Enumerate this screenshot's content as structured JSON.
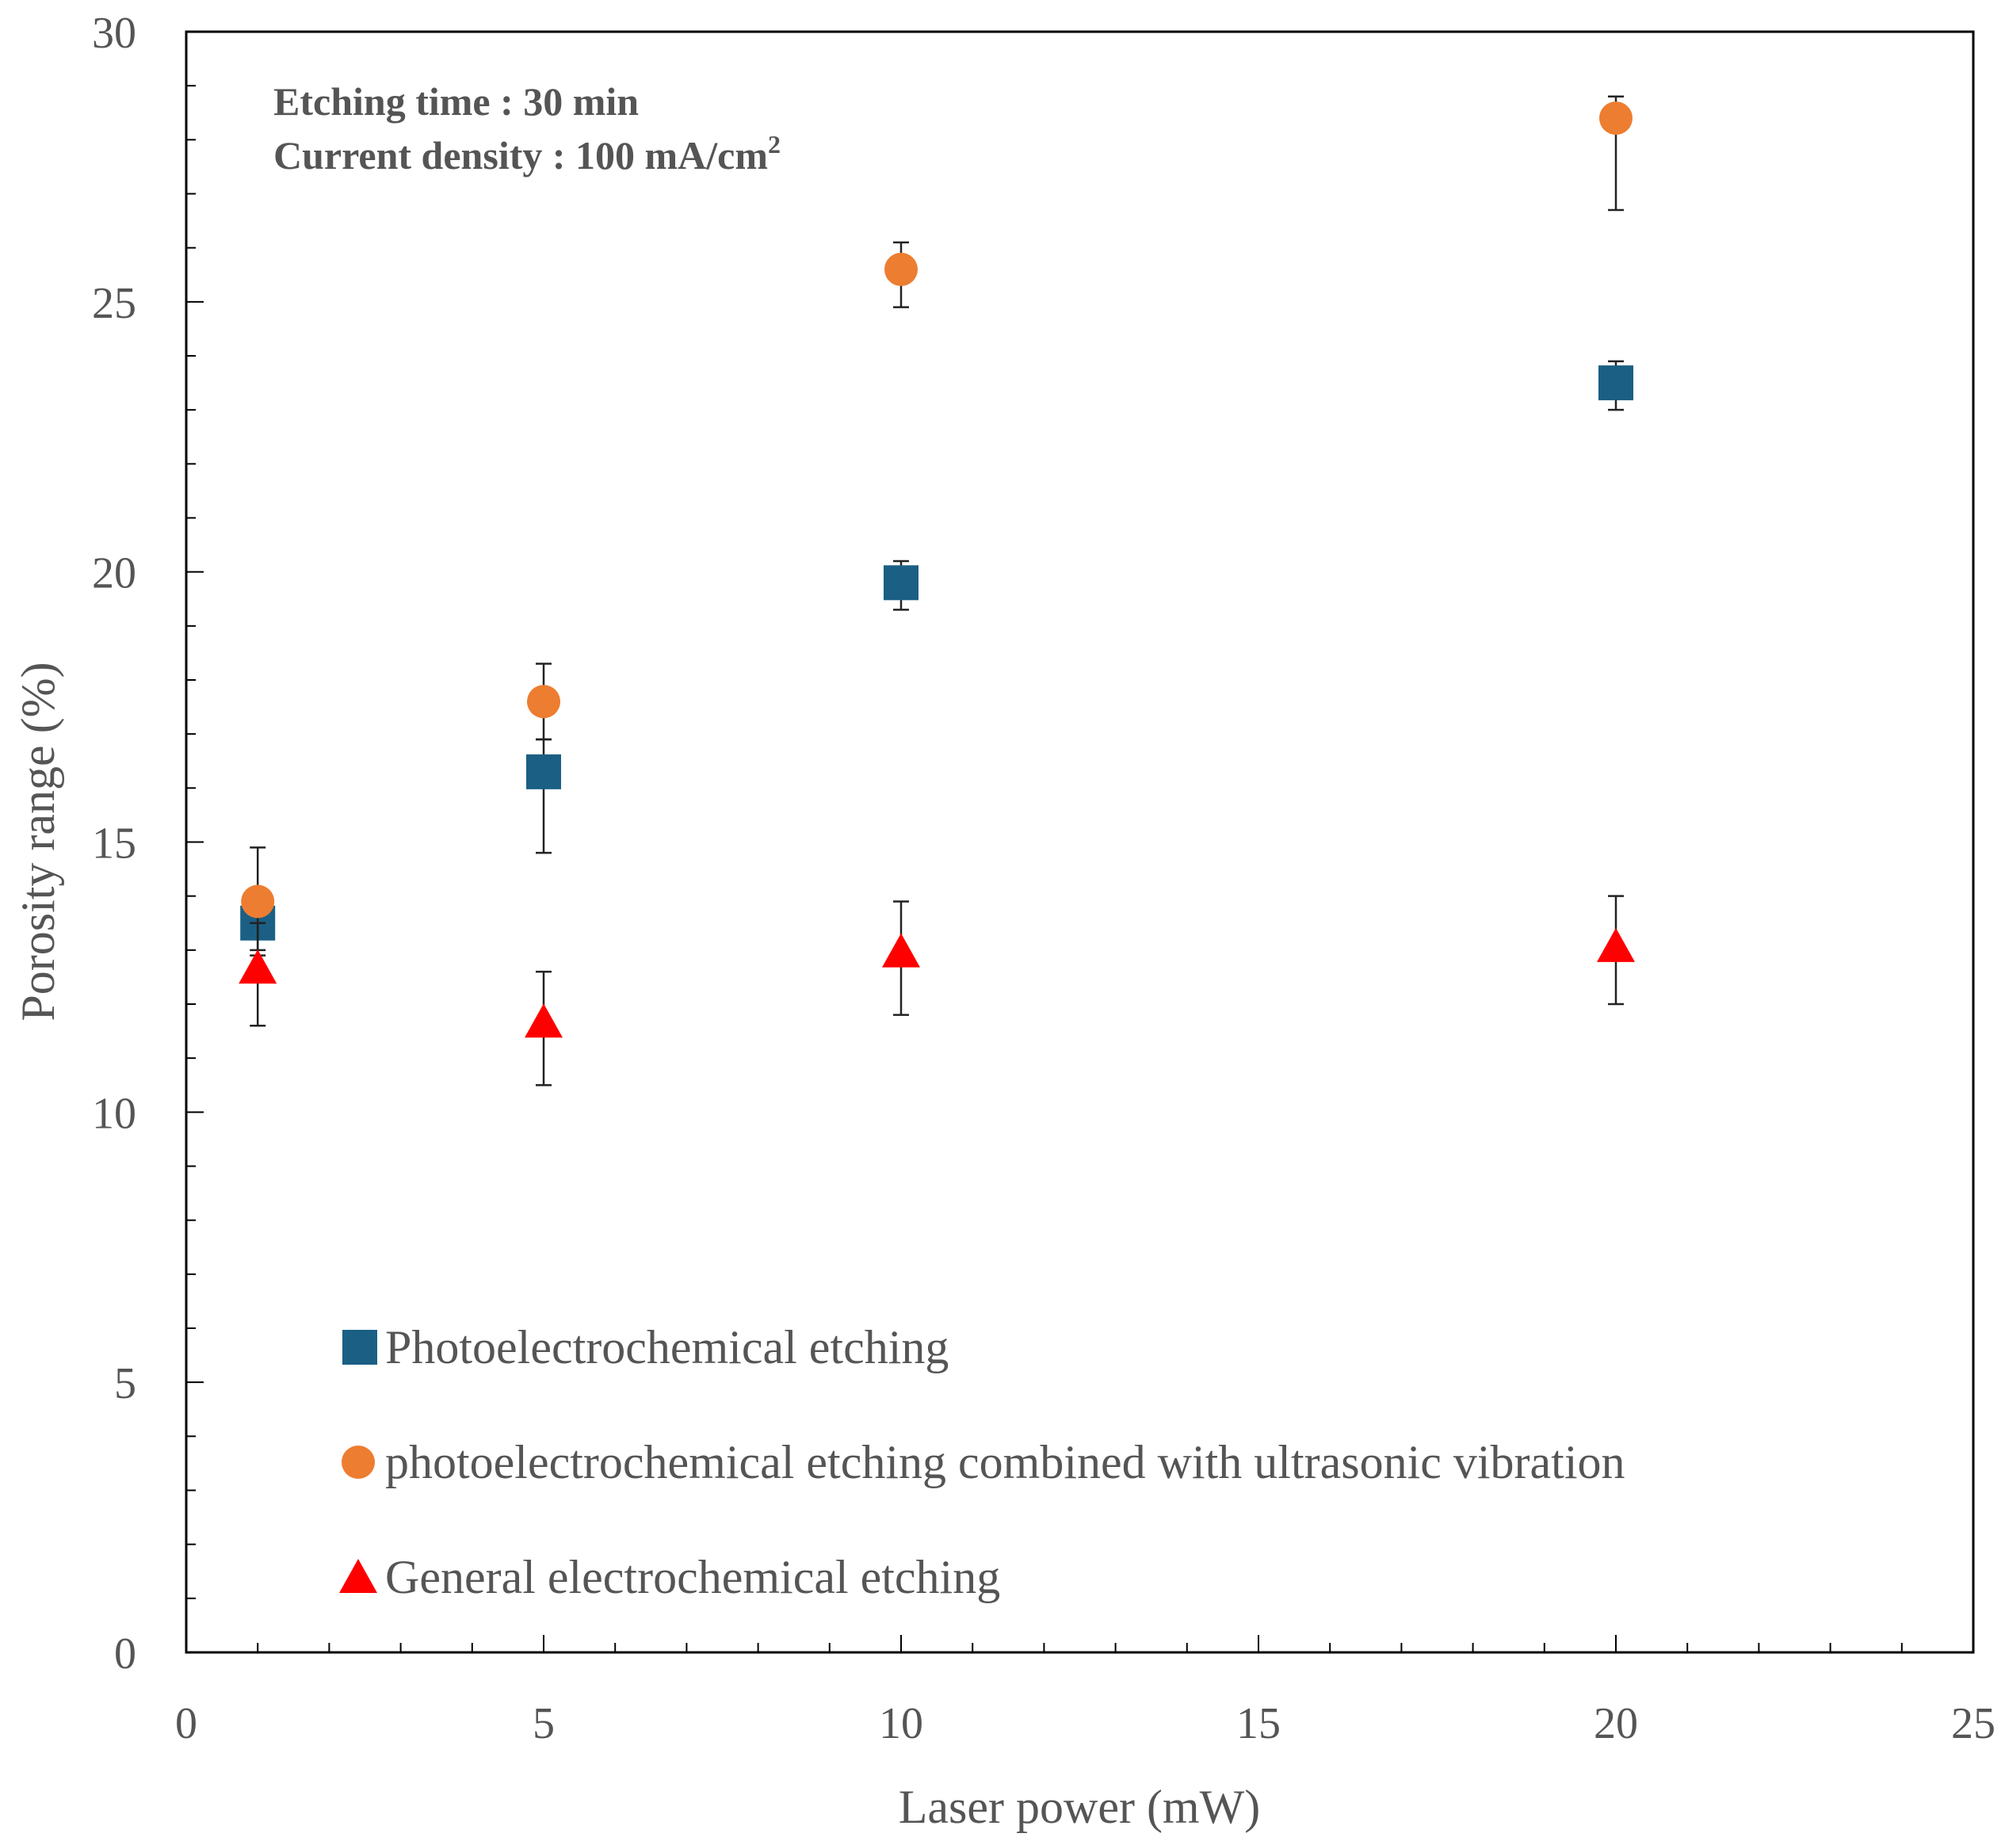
{
  "colors": {
    "photo": "#1b5f85",
    "ultrasonic": "#ed7d31",
    "general": "#ff0000",
    "axis": "#000000",
    "text": "#555555"
  },
  "chart_data": {
    "type": "scatter",
    "xlabel": "Laser power (mW)",
    "ylabel": "Porosity range (%)",
    "xlim": [
      0,
      25
    ],
    "ylim": [
      0,
      30
    ],
    "xticks": [
      "0",
      "5",
      "10",
      "15",
      "20",
      "25"
    ],
    "yticks": [
      "0",
      "5",
      "10",
      "15",
      "20",
      "25",
      "30"
    ],
    "grid": false,
    "legend_position": "bottom-left",
    "annotations": [
      "Etching time : 30 min",
      "Current density : 100 mA/cm",
      "2"
    ],
    "series": [
      {
        "name": "Photoelectrochemical etching",
        "marker": "square",
        "color": "#1b5f85",
        "x": [
          1,
          5,
          10,
          20
        ],
        "y": [
          13.5,
          16.3,
          19.8,
          23.5
        ],
        "err_low": [
          12.9,
          14.8,
          19.3,
          23.0
        ],
        "err_high": [
          14.1,
          16.9,
          20.2,
          23.9
        ]
      },
      {
        "name": "photoelectrochemical etching combined with ultrasonic vibration",
        "marker": "circle",
        "color": "#ed7d31",
        "x": [
          1,
          5,
          10,
          20
        ],
        "y": [
          13.9,
          17.6,
          25.6,
          28.4
        ],
        "err_low": [
          13.0,
          16.9,
          24.9,
          26.7
        ],
        "err_high": [
          14.9,
          18.3,
          26.1,
          28.8
        ]
      },
      {
        "name": "General electrochemical etching",
        "marker": "triangle",
        "color": "#ff0000",
        "x": [
          1,
          5,
          10,
          20
        ],
        "y": [
          12.6,
          11.6,
          12.9,
          13.0
        ],
        "err_low": [
          11.6,
          10.5,
          11.8,
          12.0
        ],
        "err_high": [
          13.5,
          12.6,
          13.9,
          14.0
        ]
      }
    ]
  }
}
